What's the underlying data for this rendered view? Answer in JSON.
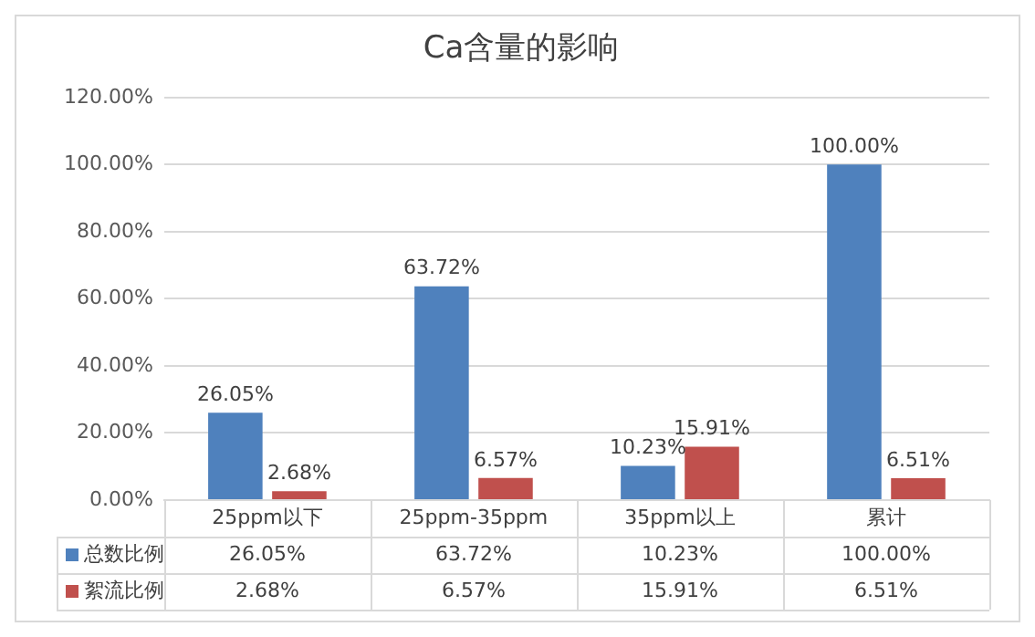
{
  "chart_data": {
    "type": "bar",
    "title": "Ca含量的影响",
    "categories": [
      "25ppm以下",
      "25ppm-35ppm",
      "35ppm以上",
      "累计"
    ],
    "series": [
      {
        "name": "总数比例",
        "color": "#4f81bd",
        "values": [
          26.05,
          63.72,
          10.23,
          100
        ],
        "value_labels": [
          "26.05%",
          "63.72%",
          "10.23%",
          "100.00%"
        ]
      },
      {
        "name": "絮流比例",
        "color": "#c0504d",
        "values": [
          2.68,
          6.57,
          15.91,
          6.51
        ],
        "value_labels": [
          "2.68%",
          "6.57%",
          "15.91%",
          "6.51%"
        ]
      }
    ],
    "ylim": [
      0,
      120
    ],
    "yticks": [
      {
        "value": 0,
        "label": "0.00%"
      },
      {
        "value": 20,
        "label": "20.00%"
      },
      {
        "value": 40,
        "label": "40.00%"
      },
      {
        "value": 60,
        "label": "60.00%"
      },
      {
        "value": 80,
        "label": "80.00%"
      },
      {
        "value": 100,
        "label": "100.00%"
      },
      {
        "value": 120,
        "label": "120.00%"
      }
    ],
    "grid": "y",
    "legend": "bottom"
  }
}
